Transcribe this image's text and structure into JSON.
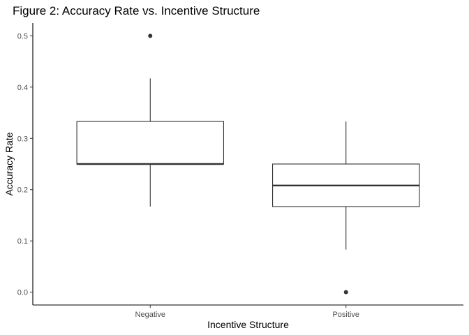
{
  "chart_data": {
    "type": "boxplot",
    "title": "Figure 2: Accuracy Rate vs. Incentive Structure",
    "xlabel": "Incentive Structure",
    "ylabel": "Accuracy Rate",
    "categories": [
      "Negative",
      "Positive"
    ],
    "ylim": [
      -0.025,
      0.525
    ],
    "yticks": [
      {
        "value": 0.0,
        "label": "0.0"
      },
      {
        "value": 0.1,
        "label": "0.1"
      },
      {
        "value": 0.2,
        "label": "0.2"
      },
      {
        "value": 0.3,
        "label": "0.3"
      },
      {
        "value": 0.4,
        "label": "0.4"
      },
      {
        "value": 0.5,
        "label": "0.5"
      }
    ],
    "boxes": [
      {
        "category": "Negative",
        "whisker_low": 0.167,
        "q1": 0.25,
        "median": 0.25,
        "q3": 0.333,
        "whisker_high": 0.417,
        "outliers": [
          0.5
        ]
      },
      {
        "category": "Positive",
        "whisker_low": 0.083,
        "q1": 0.167,
        "median": 0.208,
        "q3": 0.25,
        "whisker_high": 0.333,
        "outliers": [
          0.0
        ]
      }
    ],
    "grid": false,
    "legend": "none",
    "colors": {
      "box_fill": "#ffffff",
      "box_line": "#333333",
      "axis": "#000000",
      "tick_text": "#4d4d4d"
    }
  }
}
